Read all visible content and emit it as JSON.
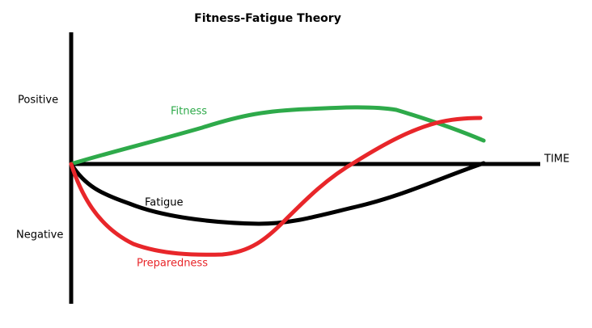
{
  "title": "Fitness-Fatigue Theory",
  "axes": {
    "y_positive": "Positive",
    "y_negative": "Negative",
    "x_label": "TIME"
  },
  "curves": {
    "fitness": "Fitness",
    "fatigue": "Fatigue",
    "preparedness": "Preparedness"
  }
}
